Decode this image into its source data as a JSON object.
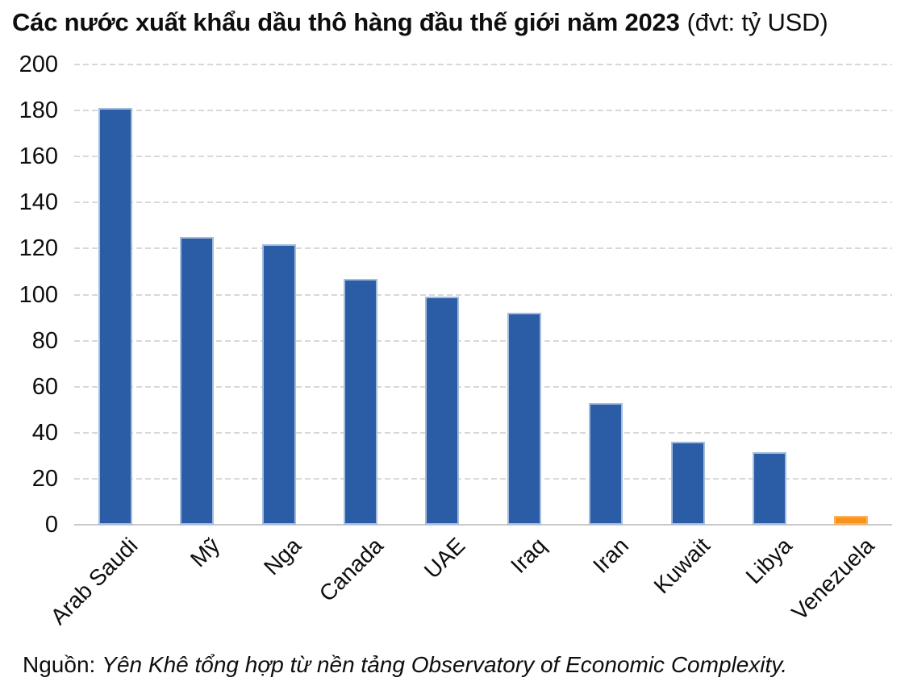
{
  "title": {
    "main": "Các nước xuất khẩu dầu thô hàng đầu thế giới năm 2023",
    "unit": "(đvt: tỷ USD)"
  },
  "source": {
    "prefix": "Nguồn:",
    "italic": "Yên Khê tổng hợp từ nền tảng Observatory of Economic Complexity."
  },
  "colors": {
    "bar_default": "#2B5DA6",
    "bar_highlight": "#F8941D",
    "gridline": "#d8d8d8",
    "axisline": "#c9c9c9",
    "text": "#0e0e0e"
  },
  "chart_data": {
    "type": "bar",
    "title": "Các nước xuất khẩu dầu thô hàng đầu thế giới năm 2023",
    "unit_note": "(đvt: tỷ USD)",
    "categories": [
      "Arab Saudi",
      "Mỹ",
      "Nga",
      "Canada",
      "UAE",
      "Iraq",
      "Iran",
      "Kuwait",
      "Libya",
      "Venezuela"
    ],
    "values": [
      181,
      125,
      122,
      107,
      99,
      92,
      53,
      36,
      31.5,
      4
    ],
    "highlight_category": "Venezuela",
    "xlabel": "",
    "ylabel": "",
    "ylim": [
      0,
      200
    ],
    "yticks": [
      200,
      180,
      160,
      140,
      120,
      100,
      80,
      60,
      40,
      20,
      0
    ],
    "grid": "horizontal-dashed",
    "legend": "none",
    "source_note": "Nguồn: Yên Khê tổng hợp từ nền tảng Observatory of Economic Complexity."
  }
}
